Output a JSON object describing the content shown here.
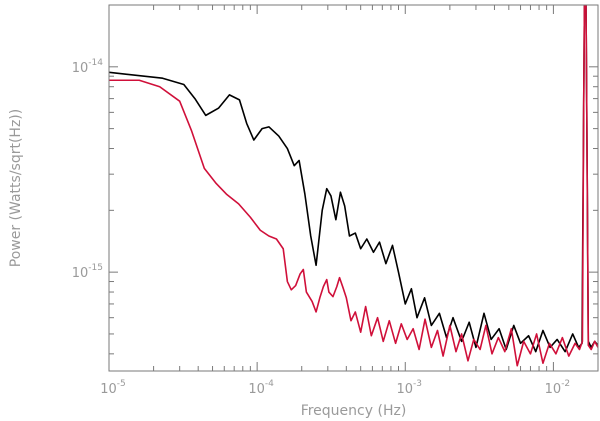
{
  "chart_data": {
    "type": "line",
    "title": "",
    "xlabel": "Frequency (Hz)",
    "ylabel": "Power (Watts/sqrt(Hz))",
    "xscale": "log",
    "yscale": "log",
    "xlim": [
      1e-05,
      0.02
    ],
    "ylim": [
      3.3e-16,
      2e-14
    ],
    "grid": false,
    "legend": "none",
    "x_ticks": [
      {
        "value": 1e-05,
        "base": "10",
        "exp": "-5"
      },
      {
        "value": 0.0001,
        "base": "10",
        "exp": "-4"
      },
      {
        "value": 0.001,
        "base": "10",
        "exp": "-3"
      },
      {
        "value": 0.01,
        "base": "10",
        "exp": "-2"
      }
    ],
    "y_ticks": [
      {
        "value": 1e-15,
        "base": "10",
        "exp": "-15"
      },
      {
        "value": 1e-14,
        "base": "10",
        "exp": "-14"
      }
    ],
    "series": [
      {
        "color": "#000000",
        "points": [
          [
            1e-05,
            9.4e-15
          ],
          [
            2.3e-05,
            8.8e-15
          ],
          [
            3.2e-05,
            8.2e-15
          ],
          [
            3.8e-05,
            7e-15
          ],
          [
            4.5e-05,
            5.8e-15
          ],
          [
            5.5e-05,
            6.3e-15
          ],
          [
            6.5e-05,
            7.3e-15
          ],
          [
            7.6e-05,
            6.9e-15
          ],
          [
            8.5e-05,
            5.3e-15
          ],
          [
            9.5e-05,
            4.4e-15
          ],
          [
            0.000108,
            5e-15
          ],
          [
            0.00012,
            5.1e-15
          ],
          [
            0.00014,
            4.6e-15
          ],
          [
            0.00016,
            4e-15
          ],
          [
            0.000178,
            3.3e-15
          ],
          [
            0.000192,
            3.5e-15
          ],
          [
            0.00021,
            2.4e-15
          ],
          [
            0.00023,
            1.5e-15
          ],
          [
            0.00025,
            1.08e-15
          ],
          [
            0.000275,
            2e-15
          ],
          [
            0.000295,
            2.55e-15
          ],
          [
            0.000315,
            2.35e-15
          ],
          [
            0.00034,
            1.8e-15
          ],
          [
            0.000365,
            2.45e-15
          ],
          [
            0.00039,
            2.1e-15
          ],
          [
            0.00042,
            1.5e-15
          ],
          [
            0.00046,
            1.55e-15
          ],
          [
            0.0005,
            1.3e-15
          ],
          [
            0.00055,
            1.45e-15
          ],
          [
            0.00061,
            1.25e-15
          ],
          [
            0.00067,
            1.4e-15
          ],
          [
            0.00074,
            1.1e-15
          ],
          [
            0.00082,
            1.35e-15
          ],
          [
            0.0009,
            1e-15
          ],
          [
            0.001,
            7e-16
          ],
          [
            0.0011,
            8.3e-16
          ],
          [
            0.0012,
            6e-16
          ],
          [
            0.00135,
            7.5e-16
          ],
          [
            0.0015,
            5.5e-16
          ],
          [
            0.0017,
            6.3e-16
          ],
          [
            0.0019,
            4.8e-16
          ],
          [
            0.0021,
            6e-16
          ],
          [
            0.0024,
            4.6e-16
          ],
          [
            0.0027,
            5.7e-16
          ],
          [
            0.003,
            4.3e-16
          ],
          [
            0.0034,
            6.3e-16
          ],
          [
            0.0038,
            4.7e-16
          ],
          [
            0.0043,
            5.3e-16
          ],
          [
            0.0048,
            4.2e-16
          ],
          [
            0.0054,
            5.5e-16
          ],
          [
            0.006,
            4.5e-16
          ],
          [
            0.0068,
            4.9e-16
          ],
          [
            0.0076,
            4.1e-16
          ],
          [
            0.0085,
            5.2e-16
          ],
          [
            0.0095,
            4.3e-16
          ],
          [
            0.0106,
            4.7e-16
          ],
          [
            0.012,
            4.1e-16
          ],
          [
            0.0135,
            5e-16
          ],
          [
            0.0148,
            4.3e-16
          ],
          [
            0.0156,
            4.5e-16
          ],
          [
            0.016,
            6e-15
          ],
          [
            0.0162,
            2e-14
          ],
          [
            0.0166,
            2e-14
          ],
          [
            0.0168,
            6e-15
          ],
          [
            0.0172,
            4.6e-16
          ],
          [
            0.018,
            4.3e-16
          ],
          [
            0.019,
            4.6e-16
          ],
          [
            0.02,
            4.4e-16
          ]
        ]
      },
      {
        "color": "#d0103a",
        "points": [
          [
            1e-05,
            8.6e-15
          ],
          [
            1.6e-05,
            8.6e-15
          ],
          [
            2.2e-05,
            8e-15
          ],
          [
            3e-05,
            6.8e-15
          ],
          [
            3.6e-05,
            4.9e-15
          ],
          [
            4.4e-05,
            3.2e-15
          ],
          [
            5.3e-05,
            2.7e-15
          ],
          [
            6.2e-05,
            2.4e-15
          ],
          [
            7.5e-05,
            2.15e-15
          ],
          [
            9e-05,
            1.85e-15
          ],
          [
            0.000105,
            1.6e-15
          ],
          [
            0.00012,
            1.5e-15
          ],
          [
            0.000135,
            1.45e-15
          ],
          [
            0.00015,
            1.3e-15
          ],
          [
            0.00016,
            9e-16
          ],
          [
            0.00017,
            8.2e-16
          ],
          [
            0.000182,
            8.6e-16
          ],
          [
            0.000195,
            9.8e-16
          ],
          [
            0.000205,
            1.03e-15
          ],
          [
            0.000215,
            8e-16
          ],
          [
            0.000235,
            7.2e-16
          ],
          [
            0.00025,
            6.4e-16
          ],
          [
            0.000265,
            7.5e-16
          ],
          [
            0.00028,
            8.5e-16
          ],
          [
            0.000295,
            9.2e-16
          ],
          [
            0.000305,
            8e-16
          ],
          [
            0.000325,
            7.6e-16
          ],
          [
            0.000345,
            8.5e-16
          ],
          [
            0.00036,
            9.4e-16
          ],
          [
            0.00038,
            8.4e-16
          ],
          [
            0.0004,
            7.5e-16
          ],
          [
            0.00043,
            5.8e-16
          ],
          [
            0.00046,
            6.4e-16
          ],
          [
            0.0005,
            5.1e-16
          ],
          [
            0.00054,
            6.8e-16
          ],
          [
            0.00059,
            4.9e-16
          ],
          [
            0.00065,
            6e-16
          ],
          [
            0.00071,
            4.6e-16
          ],
          [
            0.00078,
            5.8e-16
          ],
          [
            0.00086,
            4.5e-16
          ],
          [
            0.00094,
            5.6e-16
          ],
          [
            0.00103,
            4.7e-16
          ],
          [
            0.00113,
            5.3e-16
          ],
          [
            0.00124,
            4.2e-16
          ],
          [
            0.00136,
            5.9e-16
          ],
          [
            0.0015,
            4.3e-16
          ],
          [
            0.00165,
            5.2e-16
          ],
          [
            0.0018,
            3.9e-16
          ],
          [
            0.002,
            5.5e-16
          ],
          [
            0.0022,
            4.1e-16
          ],
          [
            0.0024,
            5e-16
          ],
          [
            0.00265,
            3.7e-16
          ],
          [
            0.0029,
            4.7e-16
          ],
          [
            0.0032,
            4.2e-16
          ],
          [
            0.0035,
            5.5e-16
          ],
          [
            0.00385,
            4e-16
          ],
          [
            0.00425,
            4.8e-16
          ],
          [
            0.0047,
            4.1e-16
          ],
          [
            0.0052,
            5.3e-16
          ],
          [
            0.0057,
            3.5e-16
          ],
          [
            0.0063,
            4.6e-16
          ],
          [
            0.007,
            4e-16
          ],
          [
            0.0077,
            5e-16
          ],
          [
            0.0085,
            3.6e-16
          ],
          [
            0.0094,
            4.5e-16
          ],
          [
            0.0104,
            4e-16
          ],
          [
            0.0115,
            4.8e-16
          ],
          [
            0.0127,
            3.9e-16
          ],
          [
            0.014,
            4.5e-16
          ],
          [
            0.015,
            4.2e-16
          ],
          [
            0.0157,
            4.6e-16
          ],
          [
            0.016,
            6e-15
          ],
          [
            0.0162,
            2e-14
          ],
          [
            0.0166,
            2e-14
          ],
          [
            0.0168,
            6e-15
          ],
          [
            0.0172,
            4.4e-16
          ],
          [
            0.018,
            4.2e-16
          ],
          [
            0.019,
            4.6e-16
          ],
          [
            0.02,
            4.3e-16
          ]
        ]
      }
    ]
  }
}
